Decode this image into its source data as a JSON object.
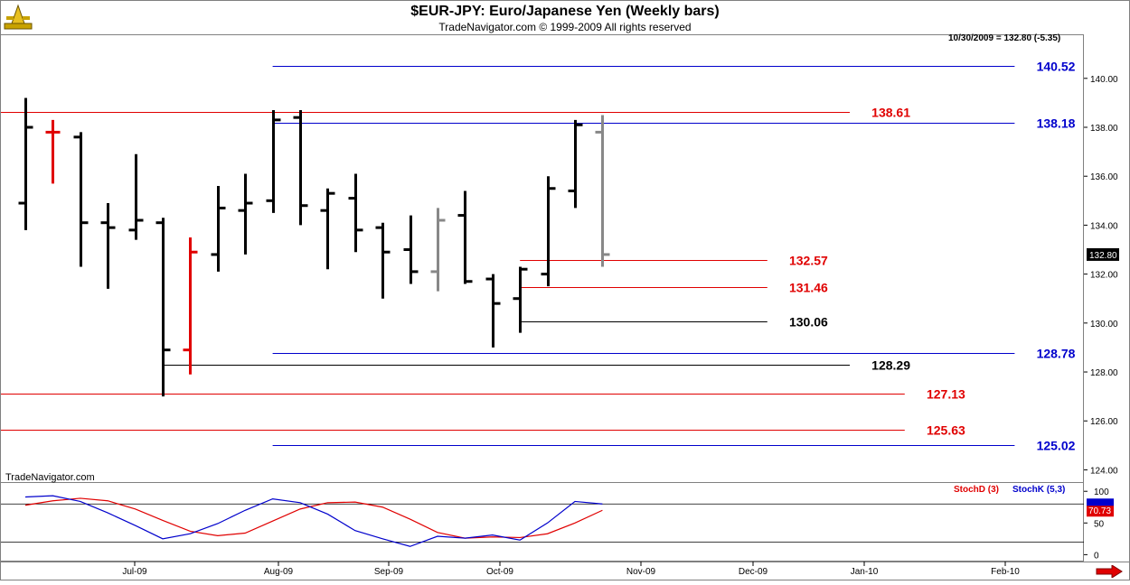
{
  "header": {
    "title": "$EUR-JPY:  Euro/Japanese Yen  (Weekly bars)",
    "subtitle": "TradeNavigator.com © 1999-2009 All rights reserved",
    "status": "10/30/2009 = 132.80 (-5.35)",
    "watermark": "TradeNavigator.com"
  },
  "chart_data": [
    {
      "type": "ohlc",
      "title": "$EUR-JPY:  Euro/Japanese Yen  (Weekly bars)",
      "ylim": [
        123.5,
        141.8
      ],
      "y_ticks": [
        "140.00",
        "138.00",
        "136.00",
        "134.00",
        "132.00",
        "130.00",
        "128.00",
        "126.00",
        "124.00"
      ],
      "last_price_label": "132.80",
      "x_labels": [
        "Jul-09",
        "Aug-09",
        "Sep-09",
        "Oct-09",
        "Nov-09",
        "Dec-09",
        "Jan-10",
        "Feb-10"
      ],
      "bars": [
        {
          "high": 139.2,
          "low": 133.8,
          "open": 134.9,
          "close": 138.0,
          "color": "#000000"
        },
        {
          "high": 138.3,
          "low": 135.7,
          "open": 137.8,
          "close": 137.8,
          "color": "#e00000"
        },
        {
          "high": 137.8,
          "low": 132.3,
          "open": 137.6,
          "close": 134.1,
          "color": "#000000"
        },
        {
          "high": 134.9,
          "low": 131.4,
          "open": 134.1,
          "close": 133.9,
          "color": "#000000"
        },
        {
          "high": 136.9,
          "low": 133.4,
          "open": 133.8,
          "close": 134.2,
          "color": "#000000"
        },
        {
          "high": 134.3,
          "low": 127.0,
          "open": 134.1,
          "close": 128.9,
          "color": "#000000"
        },
        {
          "high": 133.5,
          "low": 127.9,
          "open": 128.9,
          "close": 132.9,
          "color": "#e00000"
        },
        {
          "high": 135.6,
          "low": 132.1,
          "open": 132.8,
          "close": 134.7,
          "color": "#000000"
        },
        {
          "high": 136.1,
          "low": 132.8,
          "open": 134.6,
          "close": 134.9,
          "color": "#000000"
        },
        {
          "high": 138.7,
          "low": 134.5,
          "open": 135.0,
          "close": 138.3,
          "color": "#000000"
        },
        {
          "high": 138.7,
          "low": 134.0,
          "open": 138.4,
          "close": 134.8,
          "color": "#000000"
        },
        {
          "high": 135.5,
          "low": 132.2,
          "open": 134.6,
          "close": 135.3,
          "color": "#000000"
        },
        {
          "high": 136.1,
          "low": 132.9,
          "open": 135.1,
          "close": 133.8,
          "color": "#000000"
        },
        {
          "high": 134.1,
          "low": 131.0,
          "open": 133.9,
          "close": 132.9,
          "color": "#000000"
        },
        {
          "high": 134.4,
          "low": 131.6,
          "open": 133.0,
          "close": 132.1,
          "color": "#000000"
        },
        {
          "high": 134.7,
          "low": 131.3,
          "open": 132.1,
          "close": 134.2,
          "color": "#888888"
        },
        {
          "high": 135.4,
          "low": 131.6,
          "open": 134.4,
          "close": 131.7,
          "color": "#000000"
        },
        {
          "high": 132.0,
          "low": 129.0,
          "open": 131.8,
          "close": 130.8,
          "color": "#000000"
        },
        {
          "high": 132.3,
          "low": 129.6,
          "open": 131.0,
          "close": 132.2,
          "color": "#000000"
        },
        {
          "high": 136.0,
          "low": 131.5,
          "open": 132.0,
          "close": 135.5,
          "color": "#000000"
        },
        {
          "high": 138.3,
          "low": 134.7,
          "open": 135.4,
          "close": 138.1,
          "color": "#000000"
        },
        {
          "high": 138.5,
          "low": 132.3,
          "open": 137.8,
          "close": 132.8,
          "color": "#888888"
        }
      ],
      "levels": [
        {
          "value": 140.52,
          "label": "140.52",
          "color": "#0000cc",
          "start_bar": 9,
          "end_bar": 36,
          "label_bar": 37.5
        },
        {
          "value": 138.61,
          "label": "138.61",
          "color": "#e00000",
          "start_bar": -1,
          "end_bar": 30,
          "label_bar": 31.5
        },
        {
          "value": 138.18,
          "label": "138.18",
          "color": "#0000cc",
          "start_bar": 9,
          "end_bar": 36,
          "label_bar": 37.5
        },
        {
          "value": 132.57,
          "label": "132.57",
          "color": "#e00000",
          "start_bar": 18,
          "end_bar": 27,
          "label_bar": 28.5
        },
        {
          "value": 131.46,
          "label": "131.46",
          "color": "#e00000",
          "start_bar": 18,
          "end_bar": 27,
          "label_bar": 28.5
        },
        {
          "value": 130.06,
          "label": "130.06",
          "color": "#000000",
          "start_bar": 18,
          "end_bar": 27,
          "label_bar": 28.5
        },
        {
          "value": 128.78,
          "label": "128.78",
          "color": "#0000cc",
          "start_bar": 9,
          "end_bar": 36,
          "label_bar": 37.5
        },
        {
          "value": 128.29,
          "label": "128.29",
          "color": "#000000",
          "start_bar": 5,
          "end_bar": 30,
          "label_bar": 31.5
        },
        {
          "value": 127.13,
          "label": "127.13",
          "color": "#e00000",
          "start_bar": -1,
          "end_bar": 32,
          "label_bar": 33.5
        },
        {
          "value": 125.63,
          "label": "125.63",
          "color": "#e00000",
          "start_bar": -1,
          "end_bar": 32,
          "label_bar": 33.5
        },
        {
          "value": 125.02,
          "label": "125.02",
          "color": "#0000cc",
          "start_bar": 9,
          "end_bar": 36,
          "label_bar": 37.5
        }
      ]
    },
    {
      "type": "line",
      "title": "",
      "ylim": [
        -8,
        106
      ],
      "y_ticks": [
        "100",
        "50",
        "0"
      ],
      "reference_lines": [
        80,
        20
      ],
      "last_value_label": "70.73",
      "series": [
        {
          "name": "StochD (3)",
          "color": "#e00000",
          "values": [
            78,
            85,
            89,
            85,
            72,
            54,
            37,
            30,
            34,
            53,
            72,
            82,
            83,
            75,
            56,
            35,
            26,
            28,
            27,
            33,
            50,
            70
          ]
        },
        {
          "name": "StochK (5,3)",
          "color": "#0000cc",
          "values": [
            91,
            93,
            84,
            66,
            46,
            25,
            33,
            49,
            70,
            88,
            82,
            64,
            38,
            25,
            13,
            29,
            26,
            31,
            23,
            50,
            84,
            80
          ]
        }
      ]
    }
  ]
}
